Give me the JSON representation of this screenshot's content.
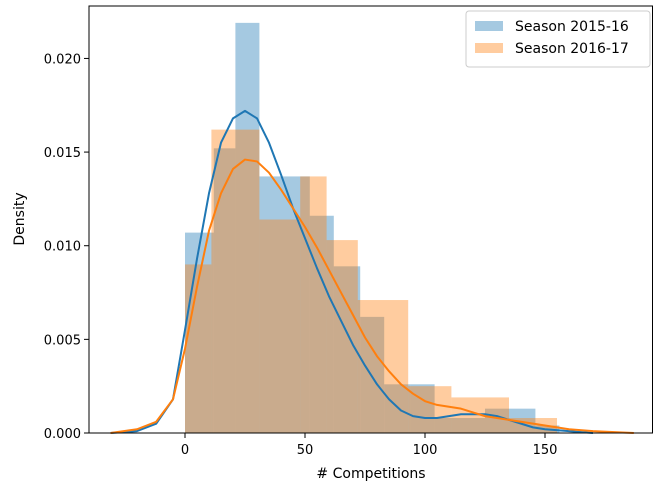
{
  "chart_data": {
    "type": "histogram-kde",
    "xlabel": "# Competitions",
    "ylabel": "Density",
    "xlim": [
      -40,
      195
    ],
    "ylim": [
      0,
      0.0228
    ],
    "x_ticks": [
      0,
      50,
      100,
      150
    ],
    "x_tick_labels": [
      "0",
      "50",
      "100",
      "150"
    ],
    "y_ticks": [
      0.0,
      0.005,
      0.01,
      0.015,
      0.02
    ],
    "y_tick_labels": [
      "0.000",
      "0.005",
      "0.010",
      "0.015",
      "0.020"
    ],
    "grid": false,
    "legend_position": "top-right",
    "series": [
      {
        "name": "Season 2015-16",
        "color": "#1f77b4",
        "bin_edges": [
          0,
          12,
          21,
          31,
          52,
          62,
          73,
          83,
          94,
          104,
          115,
          125,
          135,
          146,
          156
        ],
        "bin_heights": [
          0.0107,
          0.0152,
          0.0219,
          0.0137,
          0.0116,
          0.0089,
          0.0062,
          0.0026,
          0.0026,
          0.0008,
          0.0008,
          0.0013,
          0.0013,
          0.0004
        ],
        "kde": [
          [
            -31,
            0.0
          ],
          [
            -20,
            0.0001
          ],
          [
            -12,
            0.0005
          ],
          [
            -5,
            0.0018
          ],
          [
            0,
            0.0055
          ],
          [
            5,
            0.0093
          ],
          [
            10,
            0.0128
          ],
          [
            15,
            0.0155
          ],
          [
            20,
            0.0168
          ],
          [
            25,
            0.0172
          ],
          [
            30,
            0.0168
          ],
          [
            35,
            0.0155
          ],
          [
            40,
            0.0138
          ],
          [
            45,
            0.012
          ],
          [
            50,
            0.0104
          ],
          [
            55,
            0.0088
          ],
          [
            60,
            0.0073
          ],
          [
            65,
            0.006
          ],
          [
            70,
            0.0047
          ],
          [
            75,
            0.0036
          ],
          [
            80,
            0.0026
          ],
          [
            85,
            0.0018
          ],
          [
            90,
            0.0012
          ],
          [
            95,
            0.0009
          ],
          [
            100,
            0.0008
          ],
          [
            105,
            0.0008
          ],
          [
            110,
            0.0009
          ],
          [
            115,
            0.001
          ],
          [
            120,
            0.001
          ],
          [
            125,
            0.001
          ],
          [
            130,
            0.0009
          ],
          [
            135,
            0.0007
          ],
          [
            140,
            0.0005
          ],
          [
            145,
            0.0003
          ],
          [
            150,
            0.0002
          ],
          [
            160,
            0.0001
          ],
          [
            170,
            0.0
          ]
        ]
      },
      {
        "name": "Season 2016-17",
        "color": "#ff7f0e",
        "bin_edges": [
          0,
          11,
          31,
          48,
          59,
          72,
          93,
          111,
          135,
          155
        ],
        "bin_heights": [
          0.009,
          0.0162,
          0.0114,
          0.0137,
          0.0103,
          0.0071,
          0.0025,
          0.0019,
          0.0008
        ],
        "kde": [
          [
            -31,
            0.0
          ],
          [
            -20,
            0.0002
          ],
          [
            -12,
            0.0006
          ],
          [
            -5,
            0.0018
          ],
          [
            0,
            0.0045
          ],
          [
            5,
            0.0078
          ],
          [
            10,
            0.0108
          ],
          [
            15,
            0.0128
          ],
          [
            20,
            0.0141
          ],
          [
            25,
            0.0146
          ],
          [
            30,
            0.0145
          ],
          [
            35,
            0.0139
          ],
          [
            40,
            0.013
          ],
          [
            45,
            0.012
          ],
          [
            50,
            0.011
          ],
          [
            55,
            0.0099
          ],
          [
            60,
            0.0087
          ],
          [
            65,
            0.0075
          ],
          [
            70,
            0.0063
          ],
          [
            75,
            0.0051
          ],
          [
            80,
            0.0041
          ],
          [
            85,
            0.0033
          ],
          [
            90,
            0.0026
          ],
          [
            95,
            0.0021
          ],
          [
            100,
            0.0017
          ],
          [
            105,
            0.0015
          ],
          [
            110,
            0.0014
          ],
          [
            115,
            0.0013
          ],
          [
            120,
            0.0011
          ],
          [
            125,
            0.0009
          ],
          [
            130,
            0.0008
          ],
          [
            135,
            0.0007
          ],
          [
            140,
            0.0006
          ],
          [
            145,
            0.0005
          ],
          [
            150,
            0.0004
          ],
          [
            155,
            0.0003
          ],
          [
            160,
            0.0002
          ],
          [
            170,
            0.0001
          ],
          [
            187,
            0.0
          ]
        ]
      }
    ]
  }
}
